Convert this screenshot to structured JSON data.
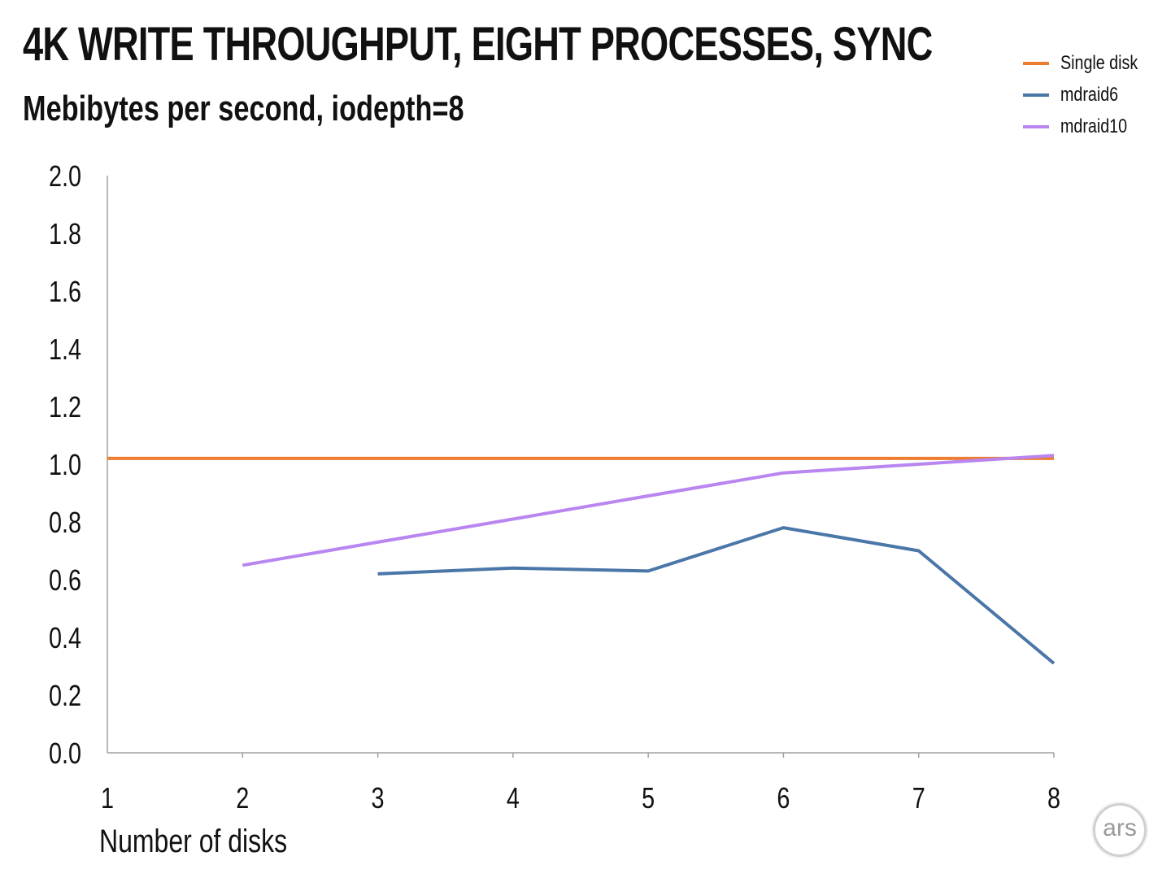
{
  "chart_data": {
    "type": "line",
    "title": "4K WRITE THROUGHPUT, EIGHT PROCESSES, SYNC",
    "subtitle": "Mebibytes per second, iodepth=8",
    "xlabel": "Number of disks",
    "ylabel": "",
    "x": [
      1,
      2,
      3,
      4,
      5,
      6,
      7,
      8
    ],
    "xlim": [
      1,
      8
    ],
    "ylim": [
      0,
      2
    ],
    "yticks": [
      "0.0",
      "0.2",
      "0.4",
      "0.6",
      "0.8",
      "1.0",
      "1.2",
      "1.4",
      "1.6",
      "1.8",
      "2.0"
    ],
    "xticks": [
      "1",
      "2",
      "3",
      "4",
      "5",
      "6",
      "7",
      "8"
    ],
    "grid": false,
    "legend_position": "top-right",
    "series": [
      {
        "name": "Single disk",
        "color": "#ed7d31",
        "points": [
          [
            1,
            1.02
          ],
          [
            8,
            1.02
          ]
        ]
      },
      {
        "name": "mdraid6",
        "color": "#4a76a8",
        "points": [
          [
            3,
            0.62
          ],
          [
            4,
            0.64
          ],
          [
            5,
            0.63
          ],
          [
            6,
            0.78
          ],
          [
            7,
            0.7
          ],
          [
            8,
            0.31
          ]
        ]
      },
      {
        "name": "mdraid10",
        "color": "#b985f1",
        "points": [
          [
            2,
            0.65
          ],
          [
            3,
            0.73
          ],
          [
            4,
            0.81
          ],
          [
            5,
            0.89
          ],
          [
            6,
            0.97
          ],
          [
            7,
            1.0
          ],
          [
            8,
            1.03
          ]
        ]
      }
    ]
  },
  "logo": {
    "text": "ars",
    "icon": "ars-logo-icon"
  }
}
